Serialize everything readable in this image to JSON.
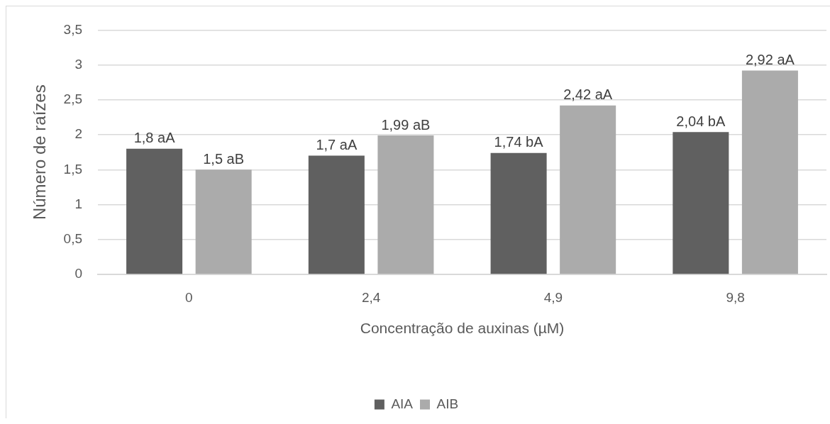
{
  "chart_data": {
    "type": "bar",
    "xlabel": "Concentração de auxinas (µM)",
    "ylabel": "Número de raízes",
    "categories": [
      "0",
      "2,4",
      "4,9",
      "9,8"
    ],
    "series": [
      {
        "name": "AIA",
        "color": "#606060",
        "values": [
          1.8,
          1.7,
          1.74,
          2.04
        ],
        "value_labels": [
          "1,8 aA",
          "1,7 aA",
          "1,74 bA",
          "2,04 bA"
        ]
      },
      {
        "name": "AIB",
        "color": "#ababab",
        "values": [
          1.5,
          1.99,
          2.42,
          2.92
        ],
        "value_labels": [
          "1,5 aB",
          "1,99 aB",
          "2,42 aA",
          "2,92 aA"
        ]
      }
    ],
    "ylim": [
      0,
      3.5
    ],
    "yticks": [
      0,
      {
        "value": 0.5,
        "label": "0,5"
      },
      1,
      {
        "value": 1.5,
        "label": "1,5"
      },
      2,
      {
        "value": 2.5,
        "label": "2,5"
      },
      3,
      {
        "value": 3.5,
        "label": "3,5"
      }
    ],
    "grid": "y",
    "legend": "bottom"
  }
}
